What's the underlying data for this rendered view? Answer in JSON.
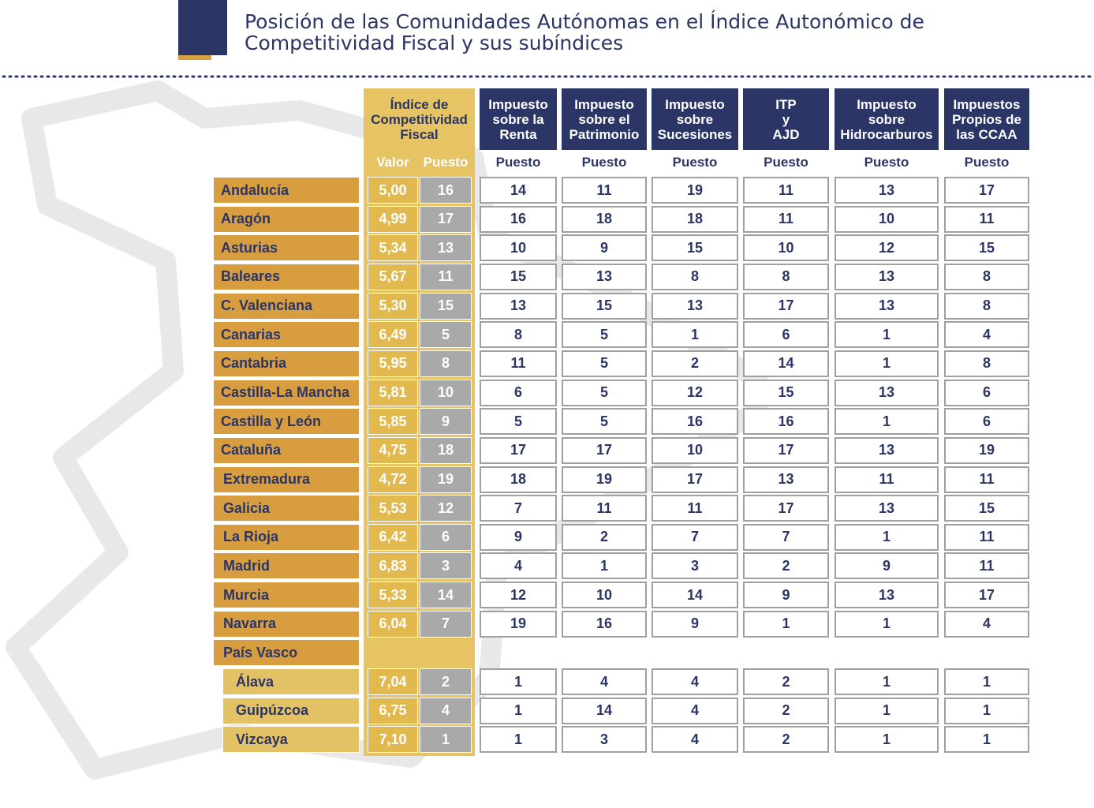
{
  "header": {
    "title": [
      "Posición de las Comunidades Autónomas en el Índice Autonómico de",
      "Competitividad Fiscal y sus subíndices"
    ]
  },
  "table": {
    "index_header": {
      "title": "Índice de\nCompetitividad\nFiscal",
      "valor": "Valor",
      "puesto": "Puesto"
    },
    "subindices": [
      {
        "title": "Impuesto\nsobre la\nRenta",
        "sub": "Puesto"
      },
      {
        "title": "Impuesto\nsobre el\nPatrimonio",
        "sub": "Puesto"
      },
      {
        "title": "Impuesto\nsobre\nSucesiones",
        "sub": "Puesto"
      },
      {
        "title": "ITP\ny\nAJD",
        "sub": "Puesto"
      },
      {
        "title": "Impuesto\nsobre\nHidrocarburos",
        "sub": "Puesto"
      },
      {
        "title": "Impuestos\nPropios de\nlas CCAA",
        "sub": "Puesto"
      }
    ],
    "rows": [
      {
        "region": "Andalucía",
        "valor": "5,00",
        "puesto": 16,
        "ranks": [
          14,
          11,
          19,
          11,
          13,
          17
        ]
      },
      {
        "region": "Aragón",
        "valor": "4,99",
        "puesto": 17,
        "ranks": [
          16,
          18,
          18,
          11,
          10,
          11
        ]
      },
      {
        "region": "Asturias",
        "valor": "5,34",
        "puesto": 13,
        "ranks": [
          10,
          9,
          15,
          10,
          12,
          15
        ]
      },
      {
        "region": "Baleares",
        "valor": "5,67",
        "puesto": 11,
        "ranks": [
          15,
          13,
          8,
          8,
          13,
          8
        ]
      },
      {
        "region": "C. Valenciana",
        "valor": "5,30",
        "puesto": 15,
        "ranks": [
          13,
          15,
          13,
          17,
          13,
          8
        ]
      },
      {
        "region": "Canarias",
        "valor": "6,49",
        "puesto": 5,
        "ranks": [
          8,
          5,
          1,
          6,
          1,
          4
        ]
      },
      {
        "region": "Cantabria",
        "valor": "5,95",
        "puesto": 8,
        "ranks": [
          11,
          5,
          2,
          14,
          1,
          8
        ]
      },
      {
        "region": "Castilla-La Mancha",
        "valor": "5,81",
        "puesto": 10,
        "ranks": [
          6,
          5,
          12,
          15,
          13,
          6
        ]
      },
      {
        "region": "Castilla y León",
        "valor": "5,85",
        "puesto": 9,
        "ranks": [
          5,
          5,
          16,
          16,
          1,
          6
        ]
      },
      {
        "region": "Cataluña",
        "valor": "4,75",
        "puesto": 18,
        "ranks": [
          17,
          17,
          10,
          17,
          13,
          19
        ]
      },
      {
        "region": "Extremadura",
        "valor": "4,72",
        "puesto": 19,
        "ranks": [
          18,
          19,
          17,
          13,
          11,
          11
        ]
      },
      {
        "region": "Galicia",
        "valor": "5,53",
        "puesto": 12,
        "ranks": [
          7,
          11,
          11,
          17,
          13,
          15
        ]
      },
      {
        "region": "La Rioja",
        "valor": "6,42",
        "puesto": 6,
        "ranks": [
          9,
          2,
          7,
          7,
          1,
          11
        ]
      },
      {
        "region": "Madrid",
        "valor": "6,83",
        "puesto": 3,
        "ranks": [
          4,
          1,
          3,
          2,
          9,
          11
        ]
      },
      {
        "region": "Murcia",
        "valor": "5,33",
        "puesto": 14,
        "ranks": [
          12,
          10,
          14,
          9,
          13,
          17
        ]
      },
      {
        "region": "Navarra",
        "valor": "6,04",
        "puesto": 7,
        "ranks": [
          19,
          16,
          9,
          1,
          1,
          4
        ]
      }
    ],
    "group": {
      "region": "País Vasco",
      "rows": [
        {
          "region": "Álava",
          "valor": "7,04",
          "puesto": 2,
          "ranks": [
            1,
            4,
            4,
            2,
            1,
            1
          ]
        },
        {
          "region": "Guipúzcoa",
          "valor": "6,75",
          "puesto": 4,
          "ranks": [
            1,
            14,
            4,
            2,
            1,
            1
          ]
        },
        {
          "region": "Vizcaya",
          "valor": "7,10",
          "puesto": 1,
          "ranks": [
            1,
            3,
            4,
            2,
            1,
            1
          ]
        }
      ]
    }
  }
}
